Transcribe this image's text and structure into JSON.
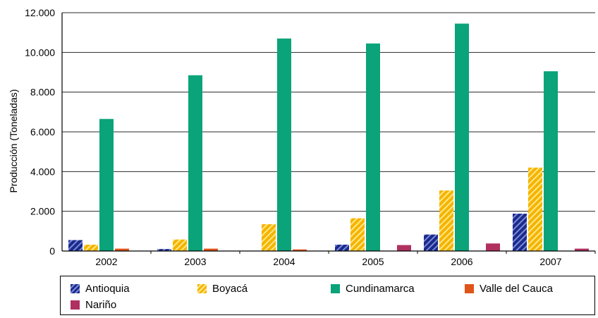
{
  "chart_data": {
    "type": "bar",
    "ylabel": "Producción (Toneladas)",
    "xlabel": "",
    "ylim": [
      0,
      12000
    ],
    "yticks": [
      "0",
      "2.000",
      "4.000",
      "6.000",
      "8.000",
      "10.000",
      "12.000"
    ],
    "ytick_values": [
      0,
      2000,
      4000,
      6000,
      8000,
      10000,
      12000
    ],
    "grid": "horizontal",
    "legend_position": "bottom",
    "categories": [
      "2002",
      "2003",
      "2004",
      "2005",
      "2006",
      "2007"
    ],
    "series": [
      {
        "name": "Antioquia",
        "color": "#1a2a8c",
        "pattern": "hatched",
        "values": [
          550,
          100,
          0,
          320,
          830,
          1880
        ]
      },
      {
        "name": "Boyacá",
        "color": "#f5b400",
        "pattern": "hatched",
        "values": [
          320,
          580,
          1350,
          1650,
          3050,
          4200
        ]
      },
      {
        "name": "Cundinamarca",
        "color": "#0aa37a",
        "pattern": "solid",
        "values": [
          6650,
          8850,
          10700,
          10450,
          11450,
          9050
        ]
      },
      {
        "name": "Valle del Cauca",
        "color": "#e0541a",
        "pattern": "solid",
        "values": [
          120,
          120,
          80,
          0,
          0,
          0
        ]
      },
      {
        "name": "Nariño",
        "color": "#b03060",
        "pattern": "solid",
        "values": [
          0,
          0,
          0,
          300,
          380,
          120
        ]
      }
    ]
  }
}
